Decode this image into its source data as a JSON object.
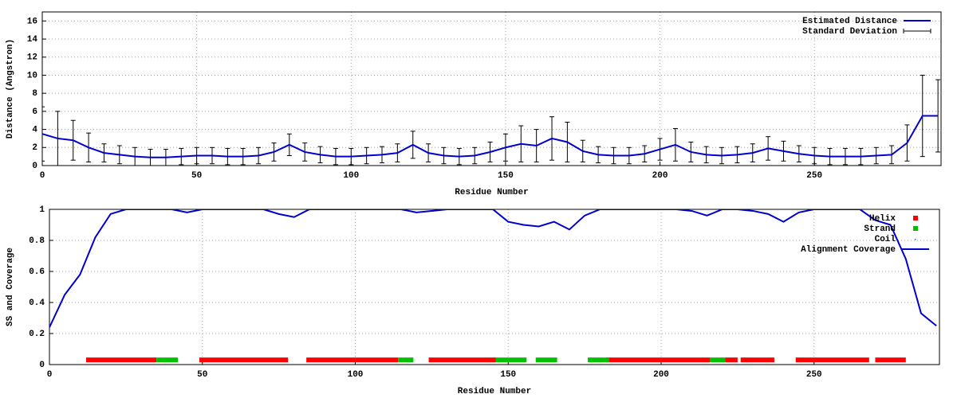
{
  "chart_data": [
    {
      "type": "errorbar",
      "xlabel": "Residue Number",
      "ylabel": "Distance (Angstron)",
      "xlim": [
        0,
        291
      ],
      "ylim": [
        0,
        17
      ],
      "xticks": [
        0,
        50,
        100,
        150,
        200,
        250
      ],
      "yticks": [
        0,
        2,
        4,
        6,
        8,
        10,
        12,
        14,
        16
      ],
      "grid": true,
      "x": [
        0,
        5,
        10,
        15,
        20,
        25,
        30,
        35,
        40,
        45,
        50,
        55,
        60,
        65,
        70,
        75,
        80,
        85,
        90,
        95,
        100,
        105,
        110,
        115,
        120,
        125,
        130,
        135,
        140,
        145,
        150,
        155,
        160,
        165,
        170,
        175,
        180,
        185,
        190,
        195,
        200,
        205,
        210,
        215,
        220,
        225,
        230,
        235,
        240,
        245,
        250,
        255,
        260,
        265,
        270,
        275,
        280,
        285,
        290
      ],
      "series": [
        {
          "name": "Estimated Distance",
          "style": "line",
          "color": "#0000cc",
          "values": [
            3.5,
            3.0,
            2.8,
            2.0,
            1.4,
            1.2,
            1.0,
            0.9,
            0.9,
            1.0,
            1.1,
            1.1,
            1.0,
            1.0,
            1.1,
            1.5,
            2.3,
            1.5,
            1.2,
            1.0,
            1.0,
            1.1,
            1.2,
            1.4,
            2.3,
            1.4,
            1.1,
            1.0,
            1.1,
            1.5,
            2.0,
            2.4,
            2.2,
            3.0,
            2.6,
            1.6,
            1.2,
            1.1,
            1.1,
            1.3,
            1.8,
            2.3,
            1.5,
            1.2,
            1.1,
            1.2,
            1.4,
            1.9,
            1.6,
            1.3,
            1.1,
            1.0,
            1.0,
            1.0,
            1.1,
            1.2,
            2.5,
            5.5,
            5.5
          ]
        },
        {
          "name": "Standard Deviation",
          "style": "errorbars",
          "color": "#000000",
          "values": [
            3,
            3,
            2.2,
            1.6,
            1,
            1,
            1,
            0.9,
            0.9,
            0.9,
            0.9,
            0.9,
            0.9,
            0.9,
            0.9,
            1,
            1.2,
            1,
            0.9,
            0.9,
            0.9,
            0.9,
            0.9,
            1,
            1.5,
            1,
            0.9,
            0.9,
            0.9,
            1.1,
            1.5,
            2,
            1.8,
            2.4,
            2.2,
            1.2,
            0.9,
            0.9,
            0.9,
            0.9,
            1.2,
            1.8,
            1.1,
            0.9,
            0.9,
            0.9,
            1,
            1.3,
            1.1,
            0.9,
            0.9,
            0.9,
            0.9,
            0.9,
            0.9,
            1,
            2,
            4.5,
            4
          ]
        }
      ]
    },
    {
      "type": "line",
      "xlabel": "Residue Number",
      "ylabel": "SS and Coverage",
      "xlim": [
        0,
        291
      ],
      "ylim": [
        0,
        1
      ],
      "xticks": [
        0,
        50,
        100,
        150,
        200,
        250
      ],
      "yticks": [
        0,
        0.2,
        0.4,
        0.6,
        0.8,
        1
      ],
      "grid": true,
      "x": [
        0,
        5,
        10,
        15,
        20,
        25,
        30,
        35,
        40,
        45,
        50,
        55,
        60,
        65,
        70,
        75,
        80,
        85,
        90,
        95,
        100,
        105,
        110,
        115,
        120,
        125,
        130,
        135,
        140,
        145,
        150,
        155,
        160,
        165,
        170,
        175,
        180,
        185,
        190,
        195,
        200,
        205,
        210,
        215,
        220,
        225,
        230,
        235,
        240,
        245,
        250,
        255,
        260,
        265,
        270,
        275,
        280,
        285,
        290
      ],
      "series": [
        {
          "name": "Helix",
          "style": "segments",
          "color": "#ff0000",
          "y": 0.03,
          "ranges": [
            [
              12,
              35
            ],
            [
              49,
              78
            ],
            [
              84,
              114
            ],
            [
              124,
              146
            ],
            [
              182,
              216
            ],
            [
              221,
              225
            ],
            [
              226,
              237
            ],
            [
              244,
              268
            ],
            [
              270,
              280
            ]
          ]
        },
        {
          "name": "Strand",
          "style": "segments",
          "color": "#00c000",
          "y": 0.03,
          "ranges": [
            [
              35,
              42
            ],
            [
              114,
              119
            ],
            [
              146,
              156
            ],
            [
              159,
              166
            ],
            [
              176,
              183
            ],
            [
              216,
              221
            ]
          ]
        },
        {
          "name": "Coil",
          "style": "points",
          "color": "#0080ff"
        },
        {
          "name": "Alignment Coverage",
          "style": "line",
          "color": "#0000cc",
          "values": [
            0.24,
            0.45,
            0.58,
            0.82,
            0.97,
            1,
            1,
            1,
            1,
            0.98,
            1,
            1,
            1,
            1,
            1,
            0.97,
            0.95,
            1,
            1,
            1,
            1,
            1,
            1,
            1,
            0.98,
            0.99,
            1,
            1,
            1,
            1,
            0.92,
            0.9,
            0.89,
            0.92,
            0.87,
            0.96,
            1,
            1,
            1,
            1,
            1,
            1,
            0.99,
            0.96,
            1,
            1,
            0.99,
            0.97,
            0.92,
            0.98,
            1,
            1,
            1,
            1,
            0.93,
            0.9,
            0.68,
            0.33,
            0.25
          ]
        }
      ]
    }
  ]
}
